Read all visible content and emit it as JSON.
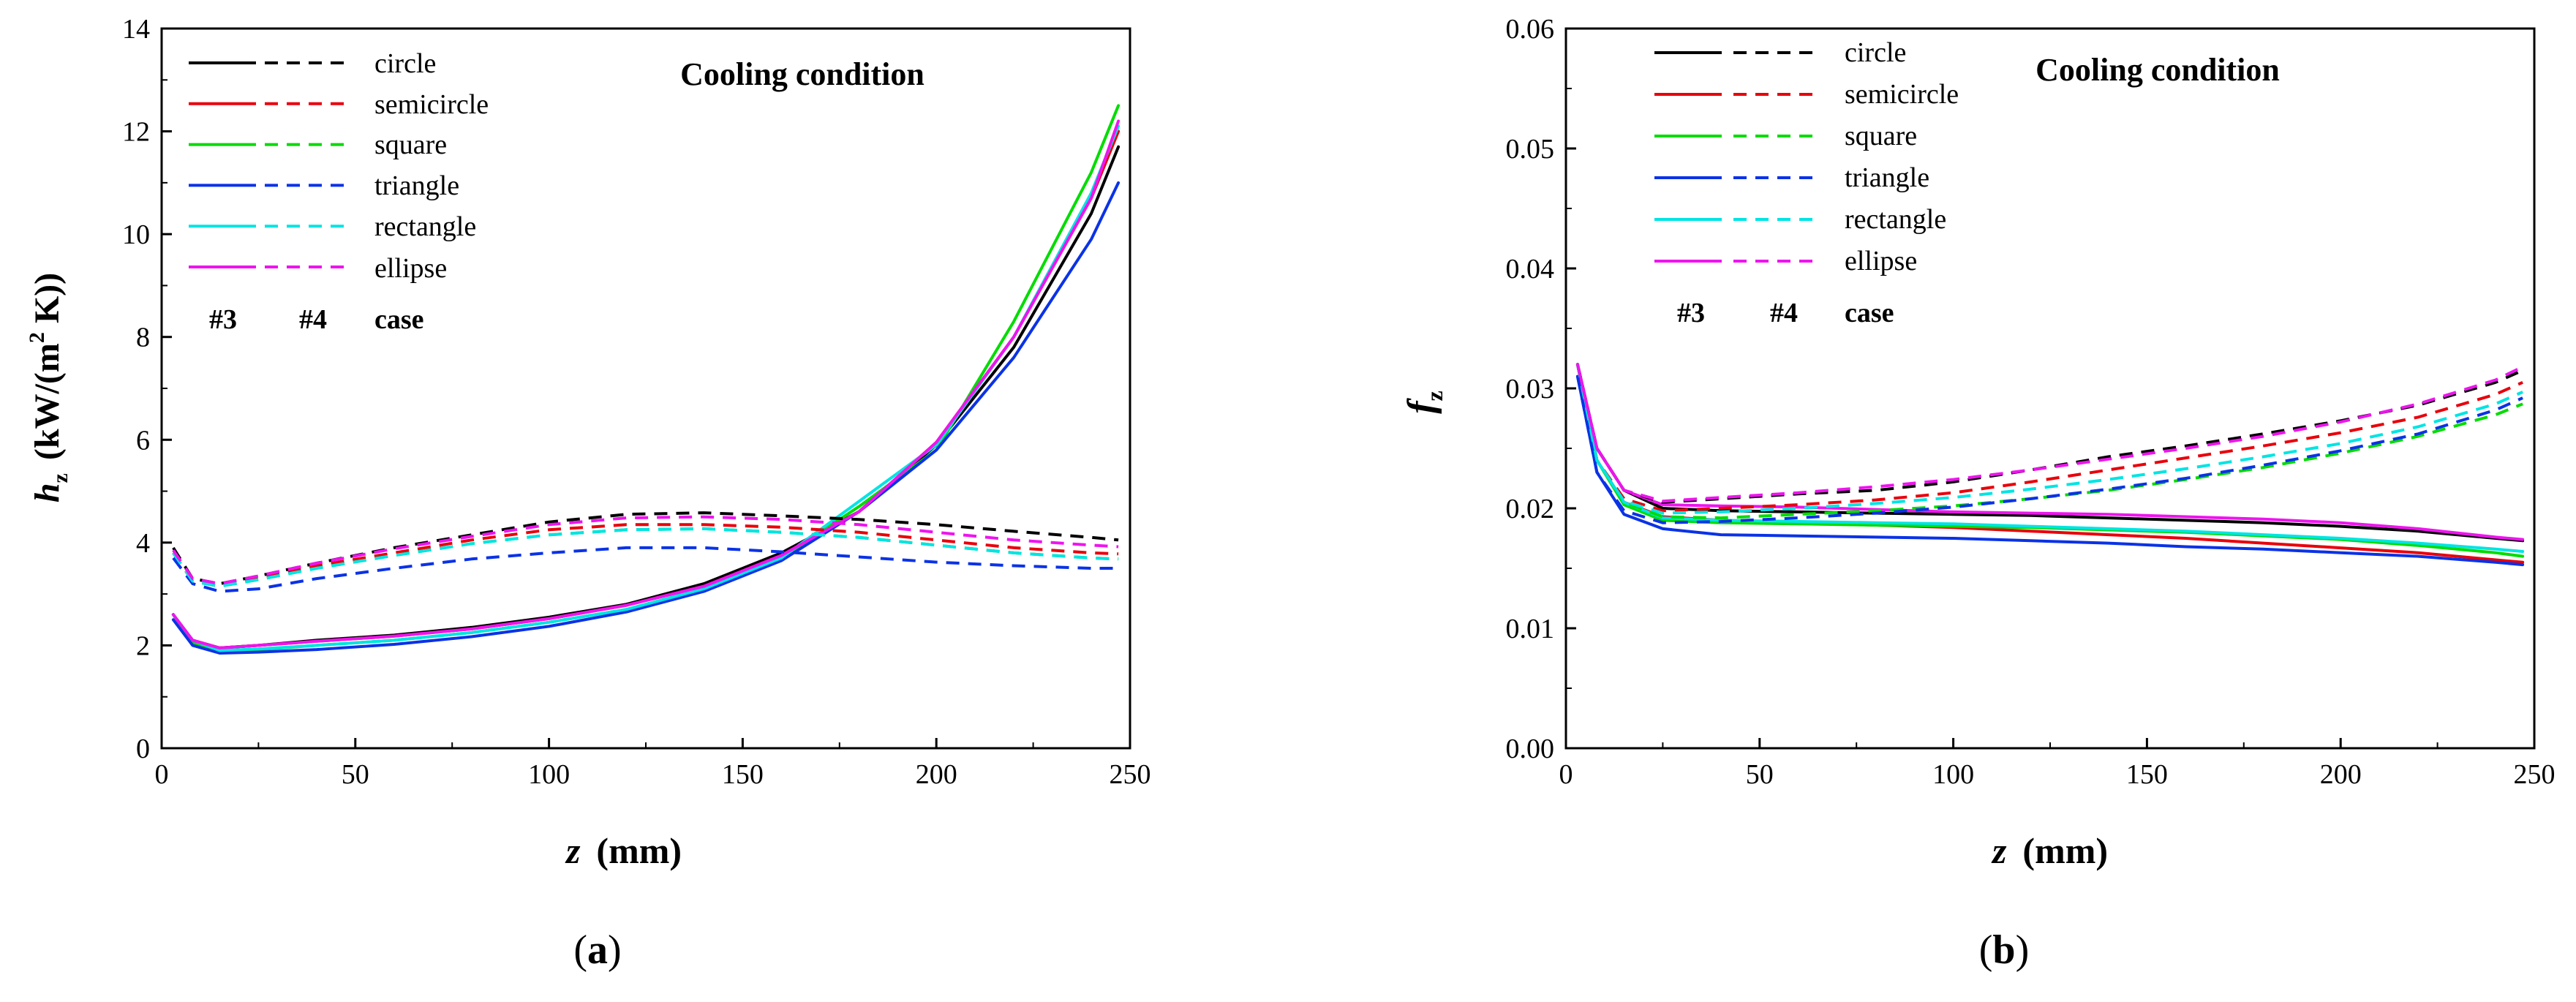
{
  "panel_labels": [
    "(a)",
    "(b)"
  ],
  "legend_header": {
    "solid": "#3",
    "dashed": "#4",
    "case": "case"
  },
  "colors": {
    "circle": "#000000",
    "semicircle": "#e8000b",
    "square": "#00dc00",
    "triangle": "#0a32e6",
    "rectangle": "#00e4e4",
    "ellipse": "#ee14ee"
  },
  "chart_data": [
    {
      "type": "line",
      "title": "Cooling condition",
      "xlabel": "z (mm)",
      "ylabel": "h_z (kW/(m^2 K))",
      "ylabel_parts": {
        "sym": "h",
        "sub": "z",
        "unit1": "(kW/(m",
        "sup": "2",
        "unit2": " K))"
      },
      "xlabel_parts": {
        "sym": "z",
        "unit": "(mm)"
      },
      "xlim": [
        0,
        250
      ],
      "ylim": [
        0,
        14
      ],
      "xticks": [
        0,
        50,
        100,
        150,
        200,
        250
      ],
      "yticks": [
        0,
        2,
        4,
        6,
        8,
        10,
        12,
        14
      ],
      "xtick_labels": [
        "0",
        "50",
        "100",
        "150",
        "200",
        "250"
      ],
      "ytick_labels": [
        "0",
        "2",
        "4",
        "6",
        "8",
        "10",
        "12",
        "14"
      ],
      "x": [
        3,
        8,
        15,
        25,
        40,
        60,
        80,
        100,
        120,
        140,
        160,
        180,
        200,
        220,
        240,
        247
      ],
      "series": [
        {
          "name": "circle",
          "case": "#3",
          "style": "solid",
          "values": [
            2.6,
            2.1,
            1.95,
            2.0,
            2.1,
            2.2,
            2.35,
            2.55,
            2.8,
            3.2,
            3.8,
            4.6,
            5.9,
            7.8,
            10.4,
            11.7
          ]
        },
        {
          "name": "semicircle",
          "case": "#3",
          "style": "solid",
          "values": [
            2.6,
            2.1,
            1.95,
            2.0,
            2.08,
            2.18,
            2.32,
            2.52,
            2.78,
            3.15,
            3.75,
            4.6,
            5.95,
            8.0,
            10.7,
            12.0
          ]
        },
        {
          "name": "square",
          "case": "#3",
          "style": "solid",
          "values": [
            2.6,
            2.05,
            1.9,
            1.92,
            2.0,
            2.1,
            2.25,
            2.45,
            2.7,
            3.1,
            3.7,
            4.7,
            5.8,
            8.3,
            11.2,
            12.5
          ]
        },
        {
          "name": "triangle",
          "case": "#3",
          "style": "solid",
          "values": [
            2.5,
            2.0,
            1.85,
            1.87,
            1.92,
            2.02,
            2.17,
            2.37,
            2.65,
            3.05,
            3.65,
            4.6,
            5.8,
            7.6,
            9.9,
            11.0
          ]
        },
        {
          "name": "rectangle",
          "case": "#3",
          "style": "solid",
          "values": [
            2.6,
            2.1,
            1.9,
            1.93,
            2.0,
            2.1,
            2.25,
            2.45,
            2.7,
            3.1,
            3.7,
            4.8,
            5.9,
            8.0,
            10.8,
            12.1
          ]
        },
        {
          "name": "ellipse",
          "case": "#3",
          "style": "solid",
          "values": [
            2.6,
            2.1,
            1.95,
            2.0,
            2.08,
            2.18,
            2.32,
            2.52,
            2.78,
            3.15,
            3.75,
            4.6,
            5.95,
            8.0,
            10.7,
            12.2
          ]
        },
        {
          "name": "circle",
          "case": "#4",
          "style": "dashed",
          "values": [
            3.9,
            3.3,
            3.2,
            3.35,
            3.6,
            3.9,
            4.15,
            4.4,
            4.55,
            4.58,
            4.52,
            4.45,
            4.35,
            4.22,
            4.1,
            4.05
          ]
        },
        {
          "name": "semicircle",
          "case": "#4",
          "style": "dashed",
          "values": [
            3.8,
            3.25,
            3.15,
            3.3,
            3.55,
            3.8,
            4.05,
            4.25,
            4.35,
            4.35,
            4.3,
            4.2,
            4.05,
            3.9,
            3.8,
            3.78
          ]
        },
        {
          "name": "square",
          "case": "#4",
          "style": "dashed",
          "values": [
            3.8,
            3.25,
            3.15,
            3.28,
            3.5,
            3.75,
            3.98,
            4.15,
            4.25,
            4.27,
            4.2,
            4.1,
            3.95,
            3.8,
            3.7,
            3.68
          ]
        },
        {
          "name": "triangle",
          "case": "#4",
          "style": "dashed",
          "values": [
            3.7,
            3.2,
            3.05,
            3.1,
            3.3,
            3.5,
            3.68,
            3.8,
            3.9,
            3.9,
            3.82,
            3.72,
            3.62,
            3.55,
            3.5,
            3.5
          ]
        },
        {
          "name": "rectangle",
          "case": "#4",
          "style": "dashed",
          "values": [
            3.8,
            3.25,
            3.15,
            3.28,
            3.5,
            3.75,
            3.98,
            4.15,
            4.25,
            4.27,
            4.2,
            4.1,
            3.95,
            3.8,
            3.7,
            3.68
          ]
        },
        {
          "name": "ellipse",
          "case": "#4",
          "style": "dashed",
          "values": [
            3.85,
            3.3,
            3.2,
            3.35,
            3.6,
            3.88,
            4.12,
            4.35,
            4.48,
            4.5,
            4.45,
            4.35,
            4.2,
            4.05,
            3.95,
            3.92
          ]
        }
      ]
    },
    {
      "type": "line",
      "title": "Cooling condition",
      "xlabel": "z (mm)",
      "ylabel": "f_z",
      "ylabel_parts": {
        "sym": "f",
        "sub": "z"
      },
      "xlabel_parts": {
        "sym": "z",
        "unit": "(mm)"
      },
      "xlim": [
        0,
        250
      ],
      "ylim": [
        0,
        0.06
      ],
      "xticks": [
        0,
        50,
        100,
        150,
        200,
        250
      ],
      "yticks": [
        0,
        0.01,
        0.02,
        0.03,
        0.04,
        0.05,
        0.06
      ],
      "xtick_labels": [
        "0",
        "50",
        "100",
        "150",
        "200",
        "250"
      ],
      "ytick_labels": [
        "0.00",
        "0.01",
        "0.02",
        "0.03",
        "0.04",
        "0.05",
        "0.06"
      ],
      "x": [
        3,
        8,
        15,
        25,
        40,
        60,
        80,
        100,
        120,
        140,
        160,
        180,
        200,
        220,
        240,
        247
      ],
      "series": [
        {
          "name": "circle",
          "case": "#3",
          "style": "solid",
          "values": [
            0.032,
            0.025,
            0.0215,
            0.02,
            0.0198,
            0.0197,
            0.0196,
            0.0195,
            0.0194,
            0.0192,
            0.019,
            0.0188,
            0.0185,
            0.0181,
            0.0175,
            0.0173
          ]
        },
        {
          "name": "semicircle",
          "case": "#3",
          "style": "solid",
          "values": [
            0.032,
            0.024,
            0.0205,
            0.0193,
            0.019,
            0.0188,
            0.0186,
            0.0184,
            0.0181,
            0.0178,
            0.0175,
            0.0171,
            0.0167,
            0.0163,
            0.0157,
            0.0155
          ]
        },
        {
          "name": "square",
          "case": "#3",
          "style": "solid",
          "values": [
            0.032,
            0.024,
            0.0203,
            0.019,
            0.0188,
            0.0187,
            0.0186,
            0.0185,
            0.0184,
            0.0182,
            0.018,
            0.0177,
            0.0174,
            0.0169,
            0.0163,
            0.016
          ]
        },
        {
          "name": "triangle",
          "case": "#3",
          "style": "solid",
          "values": [
            0.031,
            0.023,
            0.0195,
            0.0183,
            0.0178,
            0.0177,
            0.0176,
            0.0175,
            0.0173,
            0.0171,
            0.0168,
            0.0166,
            0.0163,
            0.016,
            0.0155,
            0.0153
          ]
        },
        {
          "name": "rectangle",
          "case": "#3",
          "style": "solid",
          "values": [
            0.032,
            0.024,
            0.0205,
            0.0192,
            0.019,
            0.0189,
            0.0188,
            0.0187,
            0.0185,
            0.0183,
            0.0181,
            0.0178,
            0.0175,
            0.0171,
            0.0166,
            0.0164
          ]
        },
        {
          "name": "ellipse",
          "case": "#3",
          "style": "solid",
          "values": [
            0.032,
            0.025,
            0.0215,
            0.0203,
            0.0202,
            0.0201,
            0.0199,
            0.0197,
            0.0196,
            0.0195,
            0.0193,
            0.0191,
            0.0188,
            0.0183,
            0.0176,
            0.0174
          ]
        },
        {
          "name": "circle",
          "case": "#4",
          "style": "dashed",
          "values": [
            0.032,
            0.025,
            0.0215,
            0.0205,
            0.0208,
            0.0212,
            0.0215,
            0.0222,
            0.0232,
            0.0243,
            0.0252,
            0.0262,
            0.0273,
            0.0286,
            0.0305,
            0.0315
          ]
        },
        {
          "name": "semicircle",
          "case": "#4",
          "style": "dashed",
          "values": [
            0.032,
            0.024,
            0.0208,
            0.0198,
            0.02,
            0.0203,
            0.0207,
            0.0213,
            0.0222,
            0.0232,
            0.0242,
            0.0252,
            0.0263,
            0.0276,
            0.0295,
            0.0305
          ]
        },
        {
          "name": "square",
          "case": "#4",
          "style": "dashed",
          "values": [
            0.032,
            0.024,
            0.0205,
            0.0193,
            0.0192,
            0.0195,
            0.0198,
            0.0202,
            0.0208,
            0.0215,
            0.0224,
            0.0234,
            0.0246,
            0.026,
            0.0278,
            0.0287
          ]
        },
        {
          "name": "triangle",
          "case": "#4",
          "style": "dashed",
          "values": [
            0.031,
            0.023,
            0.0198,
            0.0188,
            0.0189,
            0.0192,
            0.0196,
            0.0201,
            0.0208,
            0.0216,
            0.0225,
            0.0236,
            0.0248,
            0.0262,
            0.0282,
            0.0292
          ]
        },
        {
          "name": "rectangle",
          "case": "#4",
          "style": "dashed",
          "values": [
            0.032,
            0.024,
            0.0206,
            0.0196,
            0.0197,
            0.02,
            0.0204,
            0.0209,
            0.0216,
            0.0224,
            0.0233,
            0.0243,
            0.0254,
            0.0268,
            0.0287,
            0.0297
          ]
        },
        {
          "name": "ellipse",
          "case": "#4",
          "style": "dashed",
          "values": [
            0.032,
            0.025,
            0.0215,
            0.0206,
            0.0209,
            0.0213,
            0.0218,
            0.0224,
            0.0232,
            0.0241,
            0.025,
            0.026,
            0.0272,
            0.0287,
            0.0307,
            0.0318
          ]
        }
      ]
    }
  ]
}
